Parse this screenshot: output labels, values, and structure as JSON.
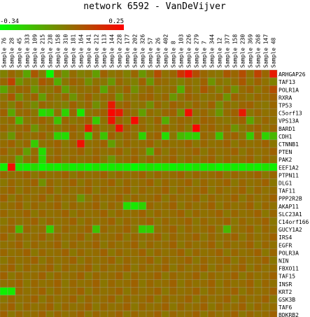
{
  "chart_data": {
    "type": "heatmap",
    "title": "network 6592 - VanDeVijver",
    "colorbar": {
      "min_label": "-0.34",
      "max_label": "0.25",
      "min": -0.34,
      "max": 0.25,
      "low_color": "#00ff00",
      "mid_color": "#808000",
      "high_color": "#ff0000"
    },
    "columns": [
      "Sample 76",
      "Sample 28",
      "Sample 45",
      "Sample 333",
      "Sample 109",
      "Sample 215",
      "Sample 238",
      "Sample 158",
      "Sample 310",
      "Sample 181",
      "Sample 164",
      "Sample 141",
      "Sample 212",
      "Sample 113",
      "Sample 144",
      "Sample 228",
      "Sample 177",
      "Sample 202",
      "Sample 326",
      "Sample 57",
      "Sample 26",
      "Sample 402",
      "Sample 8",
      "Sample 103",
      "Sample 226",
      "Sample 279",
      "Sample 7",
      "Sample 344",
      "Sample 12",
      "Sample 377",
      "Sample 158",
      "Sample 230",
      "Sample 369",
      "Sample 268",
      "Sample 147",
      "Sample 48"
    ],
    "rows": [
      "ARHGAP26",
      "TAF13",
      "POLR1A",
      "RXRA",
      "TP53",
      "C5orf13",
      "VPS13A",
      "BARD1",
      "CDH1",
      "CTNNB1",
      "PTEN",
      "PAK2",
      "EEF1A2",
      "PTPN11",
      "DLG1",
      "TAF11",
      "PPP2R2B",
      "AKAP11",
      "SLC23A1",
      "C14orf166",
      "GUCY1A2",
      "IRS4",
      "EGFR",
      "POLR3A",
      "NIN",
      "FBXO11",
      "TAF15",
      "INSR",
      "KRT2",
      "GSK3B",
      "TAF6",
      "BDKRB2"
    ],
    "values": [
      [
        0.0,
        0.05,
        0.02,
        -0.1,
        0.08,
        0.01,
        -0.33,
        0.03,
        -0.05,
        0.04,
        0.0,
        0.02,
        -0.08,
        0.06,
        0.02,
        0.04,
        0.0,
        0.05,
        -0.06,
        0.02,
        0.1,
        0.03,
        0.05,
        0.15,
        0.22,
        0.1,
        0.05,
        0.03,
        0.02,
        0.08,
        0.05,
        0.1,
        0.03,
        0.12,
        0.05,
        0.2
      ],
      [
        0.05,
        0.12,
        -0.05,
        0.02,
        0.0,
        0.08,
        0.05,
        -0.12,
        0.02,
        0.06,
        0.04,
        -0.04,
        0.03,
        0.02,
        -0.06,
        0.05,
        0.02,
        0.0,
        0.06,
        -0.06,
        0.05,
        0.04,
        0.02,
        0.0,
        0.04,
        0.02,
        0.06,
        -0.05,
        0.03,
        0.01,
        0.04,
        0.08,
        0.02,
        0.06,
        0.03,
        0.0
      ],
      [
        -0.1,
        0.02,
        0.05,
        0.05,
        -0.06,
        0.03,
        0.02,
        0.06,
        -0.08,
        0.02,
        0.04,
        0.03,
        0.05,
        -0.1,
        0.04,
        0.02,
        0.06,
        -0.04,
        0.03,
        0.05,
        0.02,
        0.03,
        0.04,
        -0.12,
        0.05,
        0.02,
        0.08,
        0.04,
        0.0,
        0.05,
        -0.04,
        0.04,
        0.06,
        0.02,
        0.05,
        0.1
      ],
      [
        0.02,
        0.08,
        -0.04,
        0.03,
        0.06,
        -0.08,
        0.04,
        0.02,
        0.05,
        -0.05,
        0.03,
        0.06,
        0.02,
        0.04,
        0.05,
        -0.05,
        0.03,
        0.02,
        0.05,
        0.06,
        0.03,
        0.05,
        -0.06,
        0.02,
        0.06,
        0.04,
        0.02,
        0.03,
        0.05,
        -0.05,
        0.06,
        0.04,
        0.02,
        0.05,
        0.04,
        0.06
      ],
      [
        0.04,
        0.0,
        0.06,
        0.02,
        -0.03,
        0.05,
        0.03,
        0.02,
        0.0,
        0.06,
        0.02,
        0.05,
        -0.04,
        0.03,
        0.2,
        0.04,
        0.06,
        0.02,
        0.03,
        -0.04,
        0.05,
        0.02,
        0.06,
        0.04,
        0.02,
        0.05,
        0.03,
        0.06,
        -0.03,
        0.04,
        0.02,
        0.05,
        0.06,
        0.03,
        0.02,
        0.05
      ],
      [
        0.06,
        -0.1,
        0.04,
        0.05,
        0.02,
        -0.25,
        -0.2,
        0.03,
        -0.22,
        0.05,
        -0.28,
        0.02,
        0.04,
        0.06,
        0.24,
        0.2,
        0.05,
        0.03,
        -0.08,
        0.04,
        0.02,
        0.05,
        0.06,
        -0.04,
        0.22,
        0.03,
        0.05,
        0.02,
        -0.06,
        0.04,
        0.06,
        0.2,
        0.02,
        0.05,
        0.03,
        0.04
      ],
      [
        0.03,
        0.05,
        -0.15,
        0.02,
        0.04,
        0.06,
        0.03,
        -0.18,
        0.05,
        0.02,
        0.04,
        0.06,
        -0.2,
        0.03,
        0.21,
        0.05,
        0.02,
        0.23,
        0.04,
        0.02,
        0.06,
        -0.12,
        0.03,
        0.05,
        0.04,
        0.02,
        0.06,
        0.05,
        0.03,
        0.02,
        0.04,
        0.06,
        -0.1,
        0.02,
        0.05,
        0.03
      ],
      [
        0.05,
        0.02,
        0.04,
        0.06,
        -0.05,
        0.03,
        0.05,
        0.02,
        0.04,
        0.06,
        0.03,
        0.2,
        0.05,
        0.02,
        0.04,
        0.22,
        0.06,
        0.03,
        0.05,
        0.02,
        0.04,
        0.06,
        0.03,
        0.05,
        0.02,
        0.24,
        0.04,
        0.06,
        0.03,
        0.05,
        -0.05,
        0.02,
        0.04,
        0.06,
        0.03,
        0.05
      ],
      [
        0.02,
        -0.06,
        0.05,
        0.03,
        0.04,
        0.06,
        0.02,
        -0.22,
        -0.25,
        0.05,
        0.03,
        -0.2,
        0.04,
        -0.18,
        0.06,
        0.02,
        0.05,
        0.03,
        -0.22,
        0.04,
        0.06,
        -0.25,
        0.02,
        -0.15,
        -0.2,
        -0.22,
        0.05,
        0.03,
        -0.18,
        0.04,
        0.06,
        0.02,
        -0.2,
        0.05,
        -0.22,
        -0.15
      ],
      [
        0.04,
        0.06,
        0.02,
        0.05,
        -0.2,
        0.03,
        0.04,
        0.06,
        0.02,
        0.05,
        0.22,
        0.03,
        0.04,
        0.06,
        -0.08,
        0.02,
        0.05,
        0.03,
        0.04,
        0.06,
        0.02,
        0.05,
        0.03,
        0.04,
        0.06,
        0.02,
        0.05,
        0.03,
        0.04,
        0.06,
        0.02,
        0.05,
        0.03,
        0.04,
        0.06,
        0.02
      ],
      [
        0.06,
        0.02,
        0.05,
        -0.08,
        0.04,
        -0.25,
        0.02,
        0.05,
        0.03,
        0.04,
        0.06,
        0.02,
        0.05,
        0.03,
        0.04,
        0.06,
        0.02,
        0.05,
        0.03,
        -0.12,
        0.06,
        0.02,
        0.05,
        0.03,
        0.04,
        0.06,
        0.02,
        0.05,
        0.03,
        0.04,
        0.06,
        0.02,
        0.05,
        0.03,
        0.04,
        0.06
      ],
      [
        0.03,
        0.04,
        -0.1,
        0.02,
        0.05,
        -0.22,
        0.04,
        0.06,
        0.02,
        0.05,
        0.03,
        0.04,
        0.06,
        0.02,
        -0.06,
        0.03,
        0.04,
        0.06,
        0.02,
        0.05,
        0.03,
        0.04,
        0.06,
        0.02,
        0.05,
        0.03,
        0.04,
        0.06,
        0.02,
        0.05,
        0.03,
        0.04,
        0.06,
        0.02,
        0.05,
        0.03
      ],
      [
        -0.3,
        0.22,
        -0.28,
        -0.3,
        -0.25,
        -0.32,
        -0.28,
        -0.3,
        -0.26,
        -0.3,
        -0.28,
        -0.31,
        -0.27,
        -0.3,
        -0.29,
        -0.28,
        -0.3,
        -0.33,
        -0.3,
        -0.27,
        -0.3,
        -0.28,
        -0.31,
        -0.29,
        -0.3,
        -0.27,
        -0.3,
        -0.28,
        -0.32,
        -0.3,
        -0.29,
        -0.3,
        -0.28,
        -0.3,
        -0.27,
        -0.3
      ],
      [
        0.05,
        0.03,
        0.04,
        0.06,
        0.02,
        0.05,
        0.03,
        0.04,
        0.06,
        0.02,
        0.05,
        0.03,
        0.04,
        0.06,
        0.02,
        0.05,
        0.03,
        0.04,
        0.06,
        0.02,
        0.05,
        0.03,
        0.04,
        0.06,
        0.02,
        0.05,
        0.03,
        0.04,
        0.06,
        0.02,
        0.05,
        0.03,
        0.04,
        0.06,
        0.02,
        0.05
      ],
      [
        0.02,
        0.05,
        0.03,
        0.04,
        0.06,
        -0.04,
        0.05,
        0.03,
        0.04,
        0.06,
        0.02,
        0.05,
        0.03,
        0.04,
        0.06,
        0.02,
        0.05,
        0.03,
        0.04,
        0.06,
        0.02,
        0.05,
        0.03,
        0.04,
        0.06,
        0.02,
        0.05,
        0.03,
        0.04,
        0.06,
        0.02,
        0.05,
        0.03,
        0.04,
        0.06,
        0.02
      ],
      [
        0.04,
        0.06,
        0.02,
        0.05,
        0.03,
        0.04,
        0.06,
        0.02,
        0.05,
        0.03,
        0.04,
        0.06,
        0.02,
        0.05,
        0.03,
        0.04,
        0.06,
        0.02,
        0.05,
        0.03,
        0.04,
        0.06,
        0.02,
        0.05,
        0.03,
        0.04,
        0.06,
        0.02,
        0.05,
        0.03,
        0.04,
        0.06,
        0.02,
        0.05,
        0.03,
        0.04
      ],
      [
        0.06,
        0.02,
        0.05,
        0.03,
        0.04,
        0.06,
        0.02,
        0.05,
        0.03,
        0.04,
        -0.06,
        0.02,
        0.05,
        0.03,
        0.04,
        0.06,
        0.02,
        0.05,
        0.03,
        0.04,
        0.06,
        0.02,
        0.05,
        0.03,
        0.04,
        0.06,
        0.02,
        0.05,
        0.03,
        0.04,
        0.06,
        0.02,
        0.05,
        0.03,
        0.04,
        0.06
      ],
      [
        0.03,
        0.04,
        0.06,
        0.02,
        0.05,
        0.03,
        0.04,
        0.06,
        0.02,
        0.05,
        0.03,
        0.04,
        0.06,
        0.02,
        0.05,
        0.03,
        -0.25,
        -0.28,
        -0.22,
        0.05,
        0.03,
        0.04,
        0.06,
        0.02,
        0.05,
        0.03,
        0.04,
        0.06,
        0.02,
        0.05,
        0.03,
        0.04,
        0.06,
        0.02,
        0.05,
        0.03
      ],
      [
        0.05,
        0.03,
        0.04,
        0.06,
        0.02,
        0.05,
        0.03,
        0.04,
        0.06,
        0.02,
        0.05,
        0.03,
        0.04,
        0.06,
        0.02,
        0.05,
        0.03,
        0.04,
        0.06,
        0.02,
        0.05,
        0.03,
        0.04,
        0.06,
        0.02,
        0.05,
        0.03,
        0.04,
        0.06,
        0.02,
        0.05,
        0.03,
        0.04,
        0.06,
        0.02,
        0.05
      ],
      [
        0.02,
        0.05,
        0.03,
        0.04,
        0.06,
        0.02,
        0.05,
        0.03,
        0.04,
        0.06,
        0.02,
        0.05,
        0.03,
        0.04,
        0.06,
        0.02,
        0.05,
        0.03,
        0.04,
        0.06,
        0.02,
        0.05,
        0.03,
        0.04,
        0.06,
        0.02,
        0.05,
        0.03,
        0.04,
        0.06,
        0.02,
        0.05,
        0.03,
        0.04,
        0.06,
        0.02
      ],
      [
        0.04,
        0.06,
        -0.15,
        0.05,
        0.03,
        0.04,
        -0.2,
        0.02,
        0.05,
        0.03,
        0.04,
        0.06,
        -0.18,
        0.05,
        0.03,
        0.04,
        0.06,
        0.02,
        -0.22,
        -0.2,
        0.03,
        0.04,
        0.06,
        0.02,
        0.05,
        0.03,
        0.04,
        0.06,
        0.02,
        -0.15,
        0.03,
        0.04,
        0.06,
        0.02,
        0.05,
        0.03
      ],
      [
        0.06,
        0.02,
        0.05,
        0.03,
        0.04,
        0.06,
        0.02,
        0.05,
        0.03,
        0.04,
        0.06,
        0.02,
        0.05,
        0.03,
        0.04,
        0.06,
        0.02,
        0.05,
        0.03,
        0.04,
        0.06,
        0.02,
        0.05,
        0.03,
        0.04,
        0.06,
        0.02,
        0.05,
        0.03,
        0.04,
        0.06,
        0.02,
        0.05,
        0.03,
        0.04,
        0.06
      ],
      [
        0.03,
        0.04,
        0.06,
        0.02,
        0.05,
        0.03,
        0.04,
        0.06,
        0.02,
        0.05,
        0.03,
        0.04,
        0.06,
        0.02,
        0.05,
        0.03,
        0.04,
        0.06,
        0.02,
        0.05,
        0.03,
        0.04,
        0.06,
        0.02,
        0.05,
        0.03,
        0.04,
        0.06,
        0.02,
        0.05,
        0.03,
        0.04,
        0.06,
        0.02,
        0.05,
        0.03
      ],
      [
        0.05,
        0.03,
        0.04,
        0.06,
        0.02,
        0.05,
        0.03,
        0.04,
        0.06,
        0.02,
        0.05,
        0.03,
        0.04,
        0.06,
        0.02,
        0.05,
        0.03,
        0.04,
        0.06,
        0.02,
        0.05,
        0.03,
        0.04,
        0.06,
        0.02,
        0.05,
        0.03,
        0.04,
        0.06,
        0.02,
        0.05,
        0.03,
        0.04,
        0.06,
        0.02,
        0.05
      ],
      [
        0.02,
        0.05,
        0.03,
        0.04,
        0.06,
        0.02,
        0.05,
        0.03,
        0.04,
        0.06,
        0.02,
        0.05,
        0.03,
        0.04,
        0.06,
        0.02,
        0.05,
        0.03,
        0.04,
        0.06,
        0.02,
        0.05,
        0.03,
        0.04,
        0.06,
        0.02,
        0.05,
        0.03,
        0.04,
        0.06,
        0.02,
        0.05,
        0.03,
        0.04,
        0.06,
        0.02
      ],
      [
        0.04,
        0.06,
        0.02,
        0.05,
        0.03,
        0.04,
        0.06,
        0.02,
        0.05,
        0.03,
        0.04,
        0.06,
        0.02,
        0.05,
        0.03,
        0.04,
        0.06,
        0.02,
        0.05,
        0.03,
        0.04,
        0.06,
        0.02,
        0.05,
        0.03,
        0.04,
        0.06,
        0.02,
        0.05,
        0.03,
        0.04,
        0.06,
        0.02,
        0.05,
        0.03,
        0.04
      ],
      [
        0.06,
        0.02,
        0.05,
        0.03,
        0.04,
        0.06,
        0.02,
        0.05,
        0.03,
        0.04,
        0.06,
        0.02,
        0.05,
        0.03,
        0.04,
        0.06,
        0.02,
        0.05,
        0.03,
        0.04,
        0.06,
        0.02,
        0.05,
        0.03,
        0.04,
        0.06,
        0.02,
        0.05,
        0.03,
        0.04,
        0.06,
        0.02,
        0.05,
        0.03,
        0.04,
        0.06
      ],
      [
        0.03,
        0.04,
        0.06,
        0.02,
        0.05,
        0.03,
        0.04,
        0.06,
        0.02,
        0.05,
        0.03,
        0.04,
        0.06,
        0.02,
        0.05,
        0.03,
        0.04,
        0.06,
        0.02,
        0.05,
        0.03,
        0.04,
        0.06,
        0.02,
        0.05,
        0.03,
        0.04,
        0.06,
        0.02,
        0.05,
        0.03,
        0.04,
        0.06,
        0.02,
        0.05,
        0.03
      ],
      [
        -0.3,
        -0.28,
        0.05,
        0.03,
        0.04,
        0.06,
        0.02,
        0.05,
        0.03,
        0.04,
        0.06,
        0.02,
        0.05,
        0.03,
        0.04,
        0.06,
        0.02,
        0.05,
        0.03,
        0.04,
        0.06,
        0.02,
        0.05,
        0.03,
        0.04,
        0.06,
        0.02,
        0.05,
        0.03,
        0.04,
        0.06,
        0.02,
        0.05,
        0.03,
        0.04,
        0.06
      ],
      [
        0.02,
        0.05,
        0.03,
        0.04,
        0.06,
        0.02,
        0.05,
        0.03,
        0.04,
        0.06,
        0.02,
        0.05,
        0.03,
        0.04,
        0.06,
        0.02,
        0.05,
        0.03,
        0.04,
        0.06,
        0.02,
        0.05,
        0.03,
        0.04,
        0.06,
        0.02,
        0.05,
        0.03,
        0.04,
        0.06,
        0.02,
        0.05,
        0.03,
        0.04,
        0.06,
        0.02
      ],
      [
        0.04,
        0.06,
        0.02,
        0.05,
        0.03,
        0.04,
        0.06,
        0.02,
        0.05,
        0.03,
        0.04,
        0.06,
        0.02,
        0.05,
        0.03,
        0.04,
        0.06,
        0.02,
        0.05,
        0.03,
        0.04,
        0.06,
        0.02,
        0.05,
        0.03,
        0.04,
        0.06,
        0.02,
        0.05,
        0.03,
        0.04,
        0.06,
        0.02,
        0.05,
        0.03,
        0.04
      ],
      [
        0.06,
        0.02,
        0.05,
        0.03,
        0.04,
        0.06,
        0.02,
        0.05,
        0.03,
        0.04,
        0.06,
        0.02,
        0.05,
        0.03,
        0.04,
        0.06,
        0.02,
        0.05,
        0.03,
        0.04,
        0.06,
        0.02,
        0.05,
        0.03,
        0.04,
        0.06,
        0.02,
        0.05,
        0.03,
        0.04,
        0.06,
        0.02,
        0.05,
        0.03,
        0.04,
        0.06
      ]
    ]
  }
}
